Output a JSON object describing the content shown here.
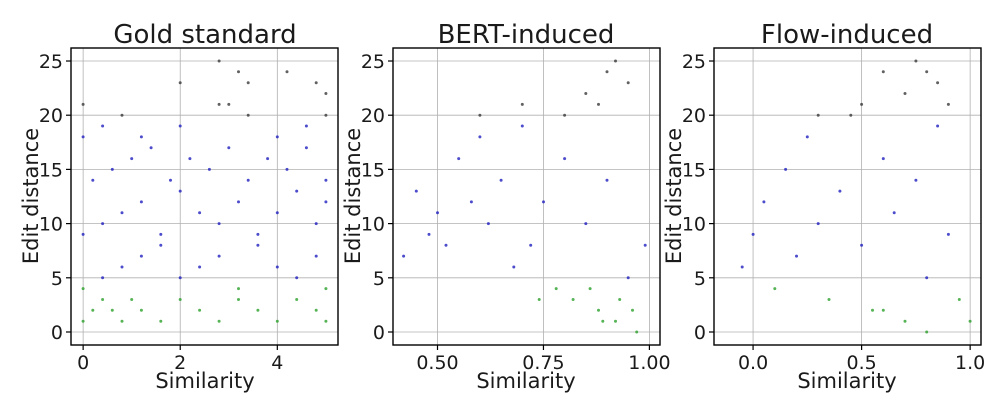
{
  "chart_data": [
    {
      "type": "scatter",
      "title": "Gold standard",
      "xlabel": "Similarity",
      "ylabel": "Edit distance",
      "xlim": [
        -0.25,
        5.25
      ],
      "ylim": [
        -1.2,
        26.2
      ],
      "xticks": [
        0,
        2,
        4
      ],
      "xtick_labels": [
        "0",
        "2",
        "4"
      ],
      "yticks": [
        0,
        5,
        10,
        15,
        20,
        25
      ],
      "ytick_labels": [
        "0",
        "5",
        "10",
        "15",
        "20",
        "25"
      ],
      "grid": true,
      "point_colors": {
        "low_edit": "#2ca02c",
        "mid_edit": "#1f1fbf",
        "high_edit": "#3a3a3a"
      },
      "points": [
        [
          0.0,
          1
        ],
        [
          0.2,
          2
        ],
        [
          0.4,
          3
        ],
        [
          0.6,
          2
        ],
        [
          0.8,
          1
        ],
        [
          1.0,
          3
        ],
        [
          1.2,
          2
        ],
        [
          1.6,
          1
        ],
        [
          2.0,
          3
        ],
        [
          2.4,
          2
        ],
        [
          2.8,
          1
        ],
        [
          3.2,
          3
        ],
        [
          3.6,
          2
        ],
        [
          4.0,
          1
        ],
        [
          4.4,
          3
        ],
        [
          4.8,
          2
        ],
        [
          5.0,
          1
        ],
        [
          0.0,
          4
        ],
        [
          0.4,
          5
        ],
        [
          0.8,
          6
        ],
        [
          1.2,
          7
        ],
        [
          1.6,
          8
        ],
        [
          2.0,
          5
        ],
        [
          2.4,
          6
        ],
        [
          2.8,
          7
        ],
        [
          3.2,
          4
        ],
        [
          3.6,
          8
        ],
        [
          4.0,
          6
        ],
        [
          4.4,
          5
        ],
        [
          4.8,
          7
        ],
        [
          5.0,
          4
        ],
        [
          0.0,
          9
        ],
        [
          0.4,
          10
        ],
        [
          0.8,
          11
        ],
        [
          1.2,
          12
        ],
        [
          1.6,
          9
        ],
        [
          2.0,
          13
        ],
        [
          2.4,
          11
        ],
        [
          2.8,
          10
        ],
        [
          3.2,
          12
        ],
        [
          3.6,
          9
        ],
        [
          4.0,
          11
        ],
        [
          4.4,
          13
        ],
        [
          4.8,
          10
        ],
        [
          5.0,
          12
        ],
        [
          0.2,
          14
        ],
        [
          0.6,
          15
        ],
        [
          1.0,
          16
        ],
        [
          1.4,
          17
        ],
        [
          1.8,
          14
        ],
        [
          2.2,
          16
        ],
        [
          2.6,
          15
        ],
        [
          3.0,
          17
        ],
        [
          3.4,
          14
        ],
        [
          3.8,
          16
        ],
        [
          4.2,
          15
        ],
        [
          4.6,
          17
        ],
        [
          5.0,
          14
        ],
        [
          0.0,
          18
        ],
        [
          0.4,
          19
        ],
        [
          0.8,
          20
        ],
        [
          1.2,
          18
        ],
        [
          2.0,
          19
        ],
        [
          2.8,
          21
        ],
        [
          3.4,
          20
        ],
        [
          4.0,
          18
        ],
        [
          4.6,
          19
        ],
        [
          5.0,
          20
        ],
        [
          2.0,
          23
        ],
        [
          2.8,
          25
        ],
        [
          3.2,
          24
        ],
        [
          3.4,
          23
        ],
        [
          4.2,
          24
        ],
        [
          4.8,
          23
        ],
        [
          5.0,
          22
        ],
        [
          3.0,
          21
        ],
        [
          0.0,
          21
        ]
      ]
    },
    {
      "type": "scatter",
      "title": "BERT-induced",
      "xlabel": "Similarity",
      "ylabel": "Edit distance",
      "xlim": [
        0.395,
        1.025
      ],
      "ylim": [
        -1.2,
        26.2
      ],
      "xticks": [
        0.5,
        0.75,
        1.0
      ],
      "xtick_labels": [
        "0.50",
        "0.75",
        "1.00"
      ],
      "yticks": [
        0,
        5,
        10,
        15,
        20,
        25
      ],
      "ytick_labels": [
        "0",
        "5",
        "10",
        "15",
        "20",
        "25"
      ],
      "grid": true,
      "point_colors": {
        "low_edit": "#2ca02c",
        "mid_edit": "#1f1fbf",
        "high_edit": "#3a3a3a"
      },
      "points": [
        [
          0.42,
          7
        ],
        [
          0.45,
          13
        ],
        [
          0.48,
          9
        ],
        [
          0.5,
          11
        ],
        [
          0.52,
          8
        ],
        [
          0.55,
          16
        ],
        [
          0.58,
          12
        ],
        [
          0.6,
          18
        ],
        [
          0.62,
          10
        ],
        [
          0.65,
          14
        ],
        [
          0.68,
          6
        ],
        [
          0.7,
          19
        ],
        [
          0.72,
          8
        ],
        [
          0.75,
          12
        ],
        [
          0.78,
          4
        ],
        [
          0.8,
          16
        ],
        [
          0.82,
          3
        ],
        [
          0.85,
          10
        ],
        [
          0.88,
          2
        ],
        [
          0.9,
          14
        ],
        [
          0.92,
          1
        ],
        [
          0.95,
          5
        ],
        [
          0.97,
          0
        ],
        [
          0.99,
          8
        ],
        [
          0.74,
          3
        ],
        [
          0.86,
          4
        ],
        [
          0.93,
          3
        ],
        [
          0.96,
          2
        ],
        [
          0.89,
          1
        ],
        [
          0.6,
          20
        ],
        [
          0.7,
          21
        ],
        [
          0.8,
          20
        ],
        [
          0.85,
          22
        ],
        [
          0.9,
          24
        ],
        [
          0.92,
          25
        ],
        [
          0.95,
          23
        ],
        [
          0.88,
          21
        ]
      ]
    },
    {
      "type": "scatter",
      "title": "Flow-induced",
      "xlabel": "Similarity",
      "ylabel": "Edit distance",
      "xlim": [
        -0.18,
        1.05
      ],
      "ylim": [
        -1.2,
        26.2
      ],
      "xticks": [
        0,
        0.5,
        1.0
      ],
      "xtick_labels": [
        "0.0",
        "0.5",
        "1.0"
      ],
      "yticks": [
        0,
        5,
        10,
        15,
        20,
        25
      ],
      "ytick_labels": [
        "0",
        "5",
        "10",
        "15",
        "20",
        "25"
      ],
      "grid": true,
      "point_colors": {
        "low_edit": "#2ca02c",
        "mid_edit": "#1f1fbf",
        "high_edit": "#3a3a3a"
      },
      "points": [
        [
          -0.05,
          6
        ],
        [
          0.0,
          9
        ],
        [
          0.05,
          12
        ],
        [
          0.1,
          4
        ],
        [
          0.15,
          15
        ],
        [
          0.2,
          7
        ],
        [
          0.25,
          18
        ],
        [
          0.3,
          10
        ],
        [
          0.35,
          3
        ],
        [
          0.4,
          13
        ],
        [
          0.45,
          20
        ],
        [
          0.5,
          8
        ],
        [
          0.55,
          2
        ],
        [
          0.6,
          16
        ],
        [
          0.65,
          11
        ],
        [
          0.7,
          1
        ],
        [
          0.75,
          14
        ],
        [
          0.8,
          5
        ],
        [
          0.85,
          19
        ],
        [
          0.9,
          9
        ],
        [
          0.95,
          3
        ],
        [
          1.0,
          1
        ],
        [
          0.6,
          2
        ],
        [
          0.8,
          0
        ],
        [
          0.3,
          20
        ],
        [
          0.5,
          21
        ],
        [
          0.7,
          22
        ],
        [
          0.75,
          25
        ],
        [
          0.8,
          24
        ],
        [
          0.85,
          23
        ],
        [
          0.9,
          21
        ],
        [
          0.6,
          24
        ]
      ]
    }
  ]
}
